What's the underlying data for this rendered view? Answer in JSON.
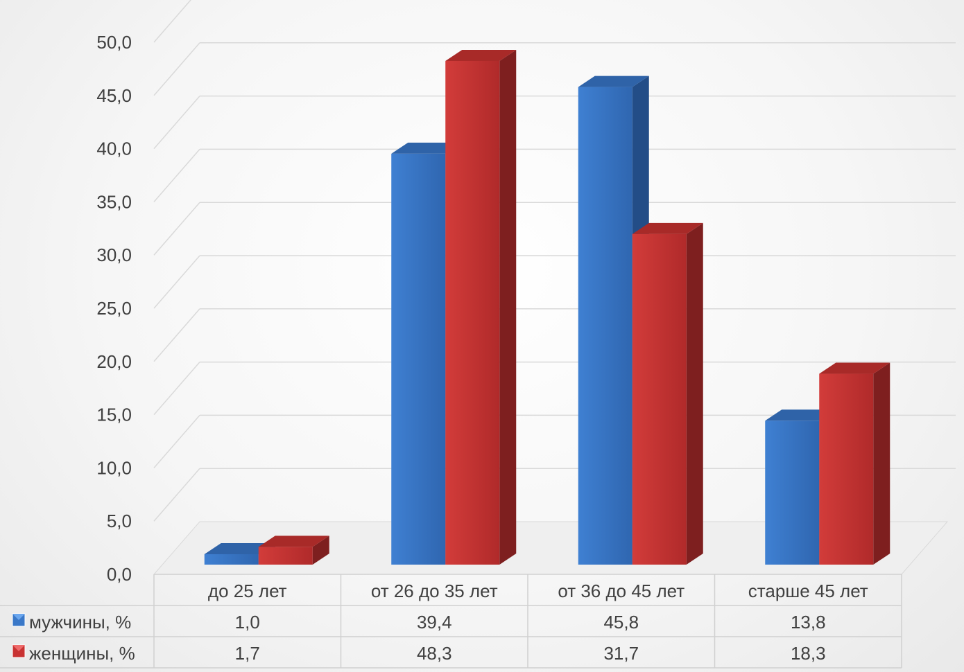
{
  "chart_data": {
    "type": "bar",
    "categories": [
      "до 25 лет",
      "от 26 до 35 лет",
      "от 36 до 45 лет",
      "старше 45 лет"
    ],
    "series": [
      {
        "name": "мужчины, %",
        "values": [
          1.0,
          39.4,
          45.8,
          13.8
        ],
        "labels": [
          "1,0",
          "39,4",
          "45,8",
          "13,8"
        ],
        "color": "#3a78c8"
      },
      {
        "name": "женщины, %",
        "values": [
          1.7,
          48.3,
          31.7,
          18.3
        ],
        "labels": [
          "1,7",
          "48,3",
          "31,7",
          "18,3"
        ],
        "color": "#c83232"
      }
    ],
    "yticks": [
      "0,0",
      "5,0",
      "10,0",
      "15,0",
      "20,0",
      "25,0",
      "30,0",
      "35,0",
      "40,0",
      "45,0",
      "50,0"
    ],
    "ylim": [
      0,
      50
    ],
    "data_table": true,
    "legend_placement": "data-table",
    "style": "3d-clustered-column",
    "grid": true
  }
}
